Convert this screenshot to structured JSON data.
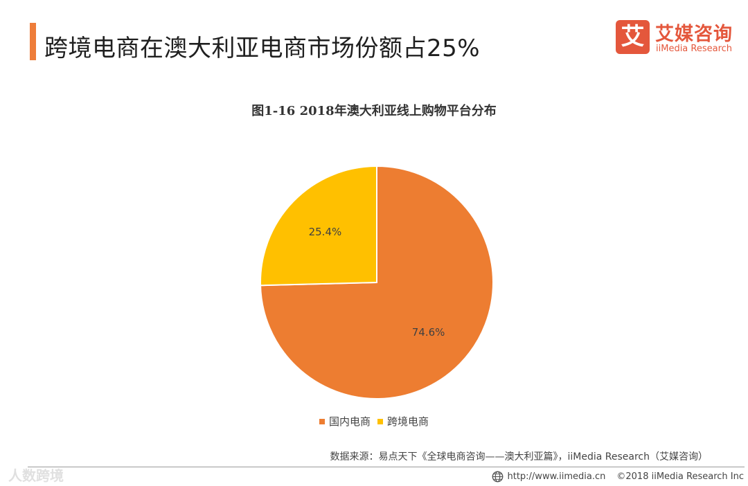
{
  "header": {
    "title": "跨境电商在澳大利亚电商市场份额占25%",
    "accent_color": "#ee7d3a"
  },
  "logo": {
    "mark": "艾",
    "name_cn": "艾媒咨询",
    "name_en": "iiMedia Research",
    "color": "#e4573c"
  },
  "chart_data": {
    "type": "pie",
    "title": "图1-16  2018年澳大利亚线上购物平台分布",
    "start_angle_deg": 0,
    "direction": "clockwise",
    "slices": [
      {
        "label": "国内电商",
        "value": 74.6,
        "display": "74.6%",
        "color": "#ed7d31"
      },
      {
        "label": "跨境电商",
        "value": 25.4,
        "display": "25.4%",
        "color": "#ffc000"
      }
    ],
    "legend_position": "bottom"
  },
  "source": "数据来源：易点天下《全球电商咨询——澳大利亚篇》，iiMedia  Research（艾媒咨询）",
  "watermark": "人数跨境",
  "footer": {
    "url": "http://www.iimedia.cn",
    "copyright": "©2018  iiMedia Research Inc"
  }
}
